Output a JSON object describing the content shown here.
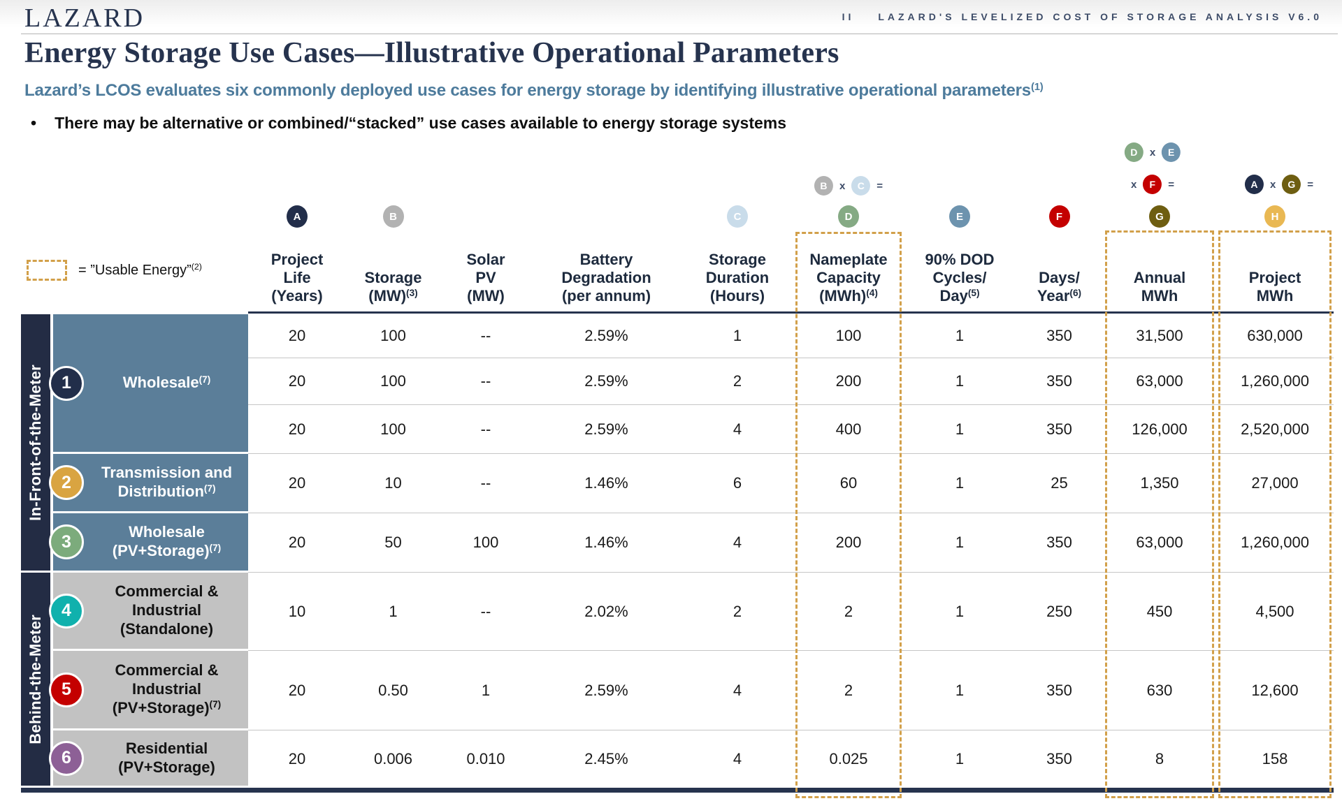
{
  "header": {
    "logo": "LAZARD",
    "page_number": "II",
    "doc_title": "LAZARD'S LEVELIZED COST OF STORAGE ANALYSIS V6.0"
  },
  "title": "Energy Storage Use Cases—Illustrative Operational Parameters",
  "subtitle": {
    "text": "Lazard’s LCOS evaluates six commonly deployed use cases for energy storage by identifying illustrative operational parameters",
    "footnote": "(1)"
  },
  "bullet": {
    "dot": "•",
    "text": "There may be alternative or combined/“stacked” use cases available to energy storage systems"
  },
  "legend": {
    "text": "= ”Usable Energy”",
    "footnote": "(2)"
  },
  "colors": {
    "navy": "#232c44",
    "gold_dash": "#d2a04a",
    "front_meter_cell": "#5b7e99",
    "behind_meter_cell": "#c2c2c2",
    "subtitle_blue": "#4d7b9c"
  },
  "badges": {
    "A": "#222e4a",
    "B": "#b2b2b2",
    "C": "#c9dcea",
    "D": "#85aa84",
    "E": "#6d93ae",
    "F": "#c40000",
    "G": "#6e5e11",
    "H": "#e9b853"
  },
  "formulas": [
    {
      "name": "nameplate-formula",
      "items": [
        "B",
        "x",
        "C",
        "="
      ]
    },
    {
      "name": "annual-formula-top",
      "items": [
        "D",
        "x",
        "E"
      ]
    },
    {
      "name": "annual-formula-bottom",
      "items": [
        "x",
        "F",
        "="
      ]
    },
    {
      "name": "project-formula",
      "items": [
        "A",
        "x",
        "G",
        "="
      ]
    }
  ],
  "table": {
    "columns": [
      {
        "lines": [
          {
            "t": "Project"
          },
          {
            "t": "Life"
          },
          {
            "t": "(Years)"
          }
        ]
      },
      {
        "lines": [
          {
            "t": "Storage"
          },
          {
            "t": "(MW)",
            "sup": "(3)"
          }
        ]
      },
      {
        "lines": [
          {
            "t": "Solar"
          },
          {
            "t": "PV"
          },
          {
            "t": "(MW)"
          }
        ]
      },
      {
        "lines": [
          {
            "t": "Battery"
          },
          {
            "t": "Degradation"
          },
          {
            "t": "(per annum)"
          }
        ]
      },
      {
        "lines": [
          {
            "t": "Storage"
          },
          {
            "t": "Duration"
          },
          {
            "t": "(Hours)"
          }
        ]
      },
      {
        "lines": [
          {
            "t": "Nameplate"
          },
          {
            "t": "Capacity"
          },
          {
            "t": "(MWh)",
            "sup": "(4)"
          }
        ]
      },
      {
        "lines": [
          {
            "t": "90% DOD"
          },
          {
            "t": "Cycles/"
          },
          {
            "t": "Day",
            "sup": "(5)"
          }
        ]
      },
      {
        "lines": [
          {
            "t": "Days/"
          },
          {
            "t": "Year",
            "sup": "(6)"
          }
        ]
      },
      {
        "lines": [
          {
            "t": "Annual"
          },
          {
            "t": "MWh"
          }
        ]
      },
      {
        "lines": [
          {
            "t": "Project"
          },
          {
            "t": "MWh"
          }
        ]
      }
    ],
    "groups": [
      {
        "label": "In-Front-of-the-Meter",
        "cell_color": "#5b7e99",
        "text_color": "#ffffff",
        "cases": [
          {
            "num": "1",
            "circle_color": "#222e4a",
            "lines": [
              "Wholesale"
            ],
            "footnote": "(7)",
            "rows": 3
          },
          {
            "num": "2",
            "circle_color": "#d9a441",
            "lines": [
              "Transmission and",
              "Distribution"
            ],
            "footnote": "(7)",
            "rows": 1
          },
          {
            "num": "3",
            "circle_color": "#7cab7c",
            "lines": [
              "Wholesale",
              "(PV+Storage)"
            ],
            "footnote": "(7)",
            "rows": 1
          }
        ]
      },
      {
        "label": "Behind-the-Meter",
        "cell_color": "#c2c2c2",
        "text_color": "#131313",
        "cases": [
          {
            "num": "4",
            "circle_color": "#10b1ad",
            "lines": [
              "Commercial &",
              "Industrial",
              "(Standalone)"
            ],
            "footnote": "",
            "rows": 1
          },
          {
            "num": "5",
            "circle_color": "#c40000",
            "lines": [
              "Commercial &",
              "Industrial",
              "(PV+Storage)"
            ],
            "footnote": "(7)",
            "rows": 1
          },
          {
            "num": "6",
            "circle_color": "#8d6096",
            "lines": [
              "Residential",
              "(PV+Storage)"
            ],
            "footnote": "",
            "rows": 1
          }
        ]
      }
    ],
    "rows": [
      [
        "20",
        "100",
        "--",
        "2.59%",
        "1",
        "100",
        "1",
        "350",
        "31,500",
        "630,000"
      ],
      [
        "20",
        "100",
        "--",
        "2.59%",
        "2",
        "200",
        "1",
        "350",
        "63,000",
        "1,260,000"
      ],
      [
        "20",
        "100",
        "--",
        "2.59%",
        "4",
        "400",
        "1",
        "350",
        "126,000",
        "2,520,000"
      ],
      [
        "20",
        "10",
        "--",
        "1.46%",
        "6",
        "60",
        "1",
        "25",
        "1,350",
        "27,000"
      ],
      [
        "20",
        "50",
        "100",
        "1.46%",
        "4",
        "200",
        "1",
        "350",
        "63,000",
        "1,260,000"
      ],
      [
        "10",
        "1",
        "--",
        "2.02%",
        "2",
        "2",
        "1",
        "250",
        "450",
        "4,500"
      ],
      [
        "20",
        "0.50",
        "1",
        "2.59%",
        "4",
        "2",
        "1",
        "350",
        "630",
        "12,600"
      ],
      [
        "20",
        "0.006",
        "0.010",
        "2.45%",
        "4",
        "0.025",
        "1",
        "350",
        "8",
        "158"
      ]
    ]
  }
}
